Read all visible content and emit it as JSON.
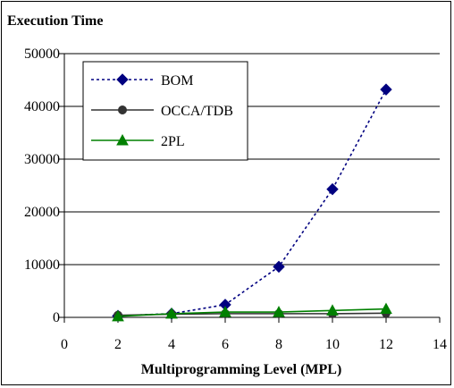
{
  "chart_data": {
    "type": "line",
    "title": "Execution Time",
    "xlabel": "Multiprogramming  Level (MPL)",
    "ylabel": "",
    "xlim": [
      0,
      14
    ],
    "ylim": [
      0,
      50000
    ],
    "x_ticks": [
      0,
      2,
      4,
      6,
      8,
      10,
      12,
      14
    ],
    "y_ticks": [
      0,
      10000,
      20000,
      30000,
      40000,
      50000
    ],
    "x_tick_labels": [
      "0",
      "2",
      "4",
      "6",
      "8",
      "10",
      "12",
      "14"
    ],
    "y_tick_labels": [
      "0",
      "10000",
      "20000",
      "30000",
      "40000",
      "50000"
    ],
    "grid": "horizontal",
    "legend_position": "top-left",
    "series": [
      {
        "name": "BOM",
        "marker": "diamond",
        "line_style": "dotted",
        "color": "#000080",
        "x": [
          2,
          4,
          6,
          8,
          10,
          12
        ],
        "values": [
          300,
          700,
          2400,
          9600,
          24300,
          43200
        ]
      },
      {
        "name": "OCCA/TDB",
        "marker": "circle",
        "line_style": "solid",
        "color": "#333333",
        "x": [
          2,
          4,
          6,
          8,
          10,
          12
        ],
        "values": [
          400,
          600,
          700,
          700,
          700,
          800
        ]
      },
      {
        "name": "2PL",
        "marker": "triangle",
        "line_style": "solid",
        "color": "#008000",
        "x": [
          2,
          4,
          6,
          8,
          10,
          12
        ],
        "values": [
          200,
          700,
          1000,
          1000,
          1300,
          1600
        ]
      }
    ]
  }
}
